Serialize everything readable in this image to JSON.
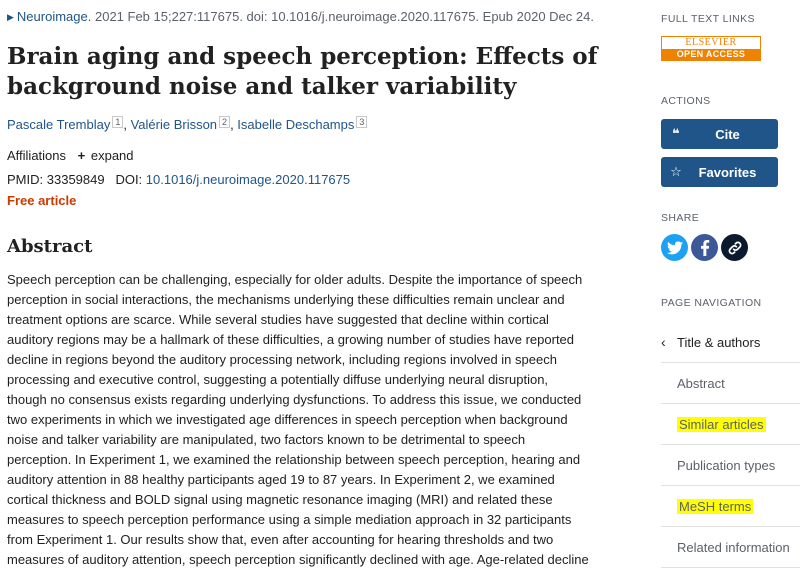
{
  "citation": {
    "journal": "Neuroimage.",
    "details": "2021 Feb 15;227:117675. doi: 10.1016/j.neuroimage.2020.117675. Epub 2020 Dec 24."
  },
  "title": {
    "line1": "Brain aging and speech perception: Effects of",
    "line2": "background noise and talker variability"
  },
  "authors": [
    {
      "name": "Pascale Tremblay",
      "aff": "1"
    },
    {
      "name": "Valérie Brisson",
      "aff": "2"
    },
    {
      "name": "Isabelle Deschamps",
      "aff": "3"
    }
  ],
  "affiliations": {
    "label": "Affiliations",
    "expand": "expand",
    "plus": "+"
  },
  "ids": {
    "pmid_label": "PMID:",
    "pmid": "33359849",
    "doi_label": "DOI:",
    "doi": "10.1016/j.neuroimage.2020.117675"
  },
  "free_article": "Free article",
  "abstract": {
    "heading": "Abstract",
    "lines": [
      "Speech perception can be challenging, especially for older adults. Despite the importance of speech",
      "perception in social interactions, the mechanisms underlying these difficulties remain unclear and",
      "treatment options are scarce. While several studies have suggested that decline within cortical",
      "auditory regions may be a hallmark of these difficulties, a growing number of studies have reported",
      "decline in regions beyond the auditory processing network, including regions involved in speech",
      "processing and executive control, suggesting a potentially diffuse underlying neural disruption,",
      "though no consensus exists regarding underlying dysfunctions. To address this issue, we conducted",
      "two experiments in which we investigated age differences in speech perception when background",
      "noise and talker variability are manipulated, two factors known to be detrimental to speech",
      "perception. In Experiment 1, we examined the relationship between speech perception, hearing and",
      "auditory attention in 88 healthy participants aged 19 to 87 years. In Experiment 2, we examined",
      "cortical thickness and BOLD signal using magnetic resonance imaging (MRI) and related these",
      "measures to speech perception performance using a simple mediation approach in 32 participants",
      "from Experiment 1. Our results show that, even after accounting for hearing thresholds and two",
      "measures of auditory attention, speech perception significantly declined with age. Age-related decline"
    ]
  },
  "sidebar": {
    "full_text_label": "FULL TEXT LINKS",
    "elsevier_top": "ELSEVIER",
    "elsevier_bottom": "OPEN ACCESS",
    "actions_label": "ACTIONS",
    "cite": "Cite",
    "favorites": "Favorites",
    "share_label": "SHARE",
    "page_nav_label": "PAGE NAVIGATION",
    "nav": [
      "Title & authors",
      "Abstract",
      "Similar articles",
      "Publication types",
      "MeSH terms",
      "Related information"
    ]
  },
  "colors": {
    "link": "#20558a",
    "free_article": "#cd3a00",
    "highlight": "#ffff00",
    "elsevier": "#ef8200"
  }
}
